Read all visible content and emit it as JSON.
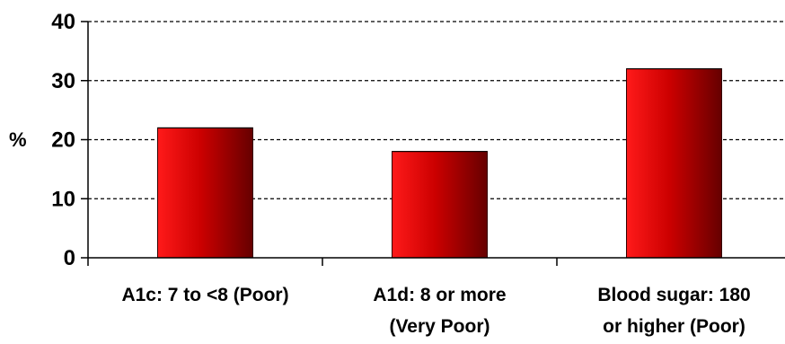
{
  "chart_data": {
    "type": "bar",
    "categories": [
      [
        "A1c: 7 to <8 (Poor)"
      ],
      [
        "A1d: 8 or more",
        "(Very Poor)"
      ],
      [
        "Blood sugar: 180",
        "or higher (Poor)"
      ]
    ],
    "values": [
      22,
      18,
      32
    ],
    "title": "",
    "xlabel": "",
    "ylabel": "%",
    "ylim": [
      0,
      40
    ],
    "yticks": [
      0,
      10,
      20,
      30,
      40
    ],
    "ytick_labels": [
      "0",
      "10",
      "20",
      "30",
      "40"
    ],
    "grid": "horizontal-dashed",
    "legend": "none",
    "colors": {
      "bar_light": "#ff1a1a",
      "bar_mid": "#cc0000",
      "bar_dark": "#660000",
      "axis": "#000000",
      "grid": "#000000"
    }
  }
}
